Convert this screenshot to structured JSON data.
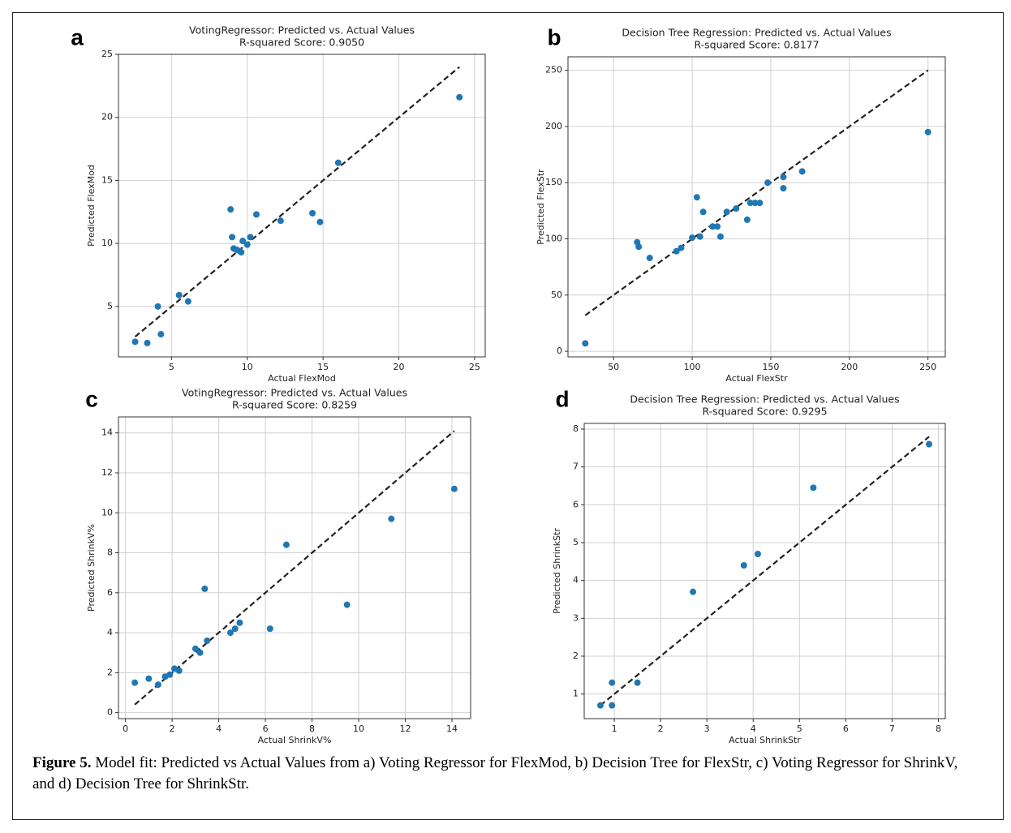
{
  "chart_data": [
    {
      "type": "scatter",
      "panel": "a",
      "title": "VotingRegressor: Predicted vs. Actual Values",
      "subtitle": "R-squared Score: 0.9050",
      "xlabel": "Actual FlexMod",
      "ylabel": "Predicted FlexMod",
      "color": "#1f77b4",
      "grid": true,
      "identity_line": true,
      "x": [
        2.6,
        3.4,
        4.1,
        4.3,
        5.5,
        6.1,
        8.9,
        9.0,
        9.1,
        9.3,
        9.5,
        9.6,
        9.7,
        10.0,
        10.2,
        10.6,
        12.2,
        14.3,
        14.8,
        16.0,
        24.0
      ],
      "values": [
        2.2,
        2.1,
        5.0,
        2.8,
        5.9,
        5.4,
        12.7,
        10.5,
        9.6,
        9.5,
        9.4,
        9.3,
        10.2,
        9.9,
        10.5,
        12.3,
        11.8,
        12.4,
        11.7,
        16.4,
        21.6
      ],
      "xlim": [
        1.5,
        25.7
      ],
      "ylim": [
        1.0,
        25.0
      ],
      "xticks": [
        5,
        10,
        15,
        20,
        25
      ],
      "yticks": [
        5,
        10,
        15,
        20,
        25
      ]
    },
    {
      "type": "scatter",
      "panel": "b",
      "title": "Decision Tree Regression: Predicted vs. Actual Values",
      "subtitle": "R-squared Score: 0.8177",
      "xlabel": "Actual FlexStr",
      "ylabel": "Predicted FlexStr",
      "color": "#1f77b4",
      "grid": true,
      "identity_line": true,
      "x": [
        32,
        65,
        66,
        73,
        90,
        93,
        100,
        103,
        105,
        107,
        113,
        116,
        118,
        122,
        128,
        135,
        137,
        140,
        143,
        148,
        158,
        158,
        170,
        250
      ],
      "values": [
        7,
        97,
        93,
        83,
        89,
        92,
        101,
        137,
        102,
        124,
        111,
        111,
        102,
        124,
        127,
        117,
        132,
        132,
        132,
        150,
        155,
        145,
        160,
        195
      ],
      "xlim": [
        21,
        261
      ],
      "ylim": [
        -5,
        262
      ],
      "xticks": [
        50,
        100,
        150,
        200,
        250
      ],
      "yticks": [
        0,
        50,
        100,
        150,
        200,
        250
      ]
    },
    {
      "type": "scatter",
      "panel": "c",
      "title": "VotingRegressor: Predicted vs. Actual Values",
      "subtitle": "R-squared Score: 0.8259",
      "xlabel": "Actual ShrinkV%",
      "ylabel": "Predicted ShrinkV%",
      "color": "#1f77b4",
      "grid": true,
      "identity_line": true,
      "x": [
        0.4,
        1.0,
        1.4,
        1.7,
        1.9,
        2.1,
        2.3,
        3.0,
        3.2,
        3.4,
        3.5,
        4.5,
        4.7,
        4.9,
        6.2,
        6.9,
        9.5,
        11.4,
        14.1
      ],
      "values": [
        1.5,
        1.7,
        1.4,
        1.8,
        1.9,
        2.2,
        2.1,
        3.2,
        3.0,
        6.2,
        3.6,
        4.0,
        4.2,
        4.5,
        4.2,
        8.4,
        5.4,
        9.7,
        11.2
      ],
      "xlim": [
        -0.3,
        14.8
      ],
      "ylim": [
        -0.3,
        14.8
      ],
      "xticks": [
        0,
        2,
        4,
        6,
        8,
        10,
        12,
        14
      ],
      "yticks": [
        0,
        2,
        4,
        6,
        8,
        10,
        12,
        14
      ]
    },
    {
      "type": "scatter",
      "panel": "d",
      "title": "Decision Tree Regression: Predicted vs. Actual Values",
      "subtitle": "R-squared Score: 0.9295",
      "xlabel": "Actual ShrinkStr",
      "ylabel": "Predicted ShrinkStr",
      "color": "#1f77b4",
      "grid": true,
      "identity_line": true,
      "x": [
        0.7,
        0.95,
        0.95,
        1.5,
        2.7,
        3.8,
        4.1,
        5.3,
        7.8
      ],
      "values": [
        0.7,
        1.3,
        0.7,
        1.3,
        3.7,
        4.4,
        4.7,
        6.45,
        7.6
      ],
      "xlim": [
        0.35,
        8.15
      ],
      "ylim": [
        0.35,
        8.15
      ],
      "xticks": [
        1,
        2,
        3,
        4,
        5,
        6,
        7,
        8
      ],
      "yticks": [
        1,
        2,
        3,
        4,
        5,
        6,
        7,
        8
      ]
    }
  ],
  "caption": {
    "label": "Figure 5.",
    "text": "Model fit: Predicted vs Actual Values from a) Voting Regressor for FlexMod, b) Decision Tree for FlexStr, c) Voting Regressor for ShrinkV, and d) Decision Tree for ShrinkStr."
  }
}
